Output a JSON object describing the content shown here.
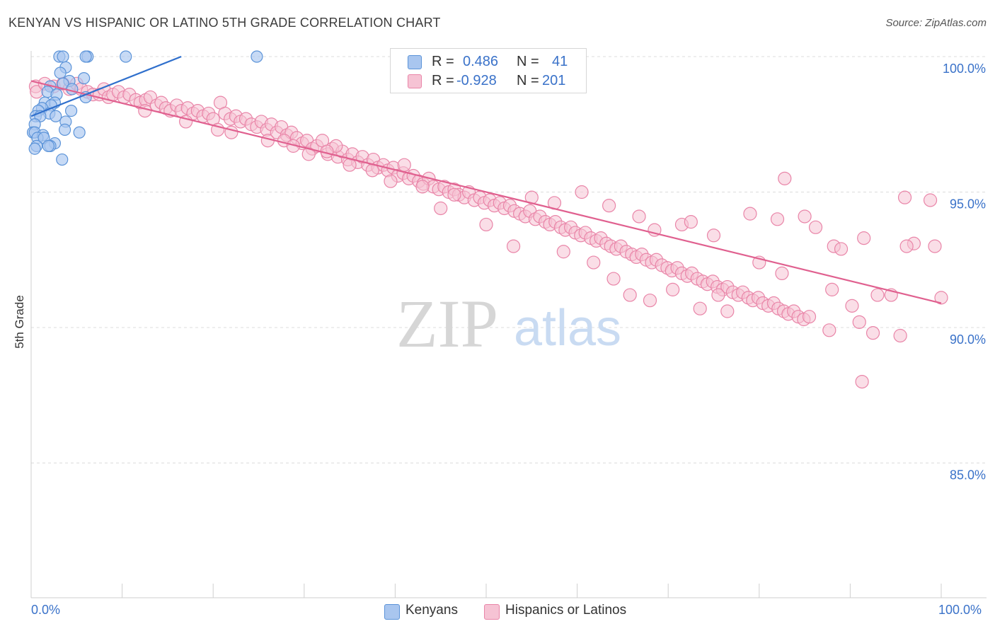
{
  "title": "KENYAN VS HISPANIC OR LATINO 5TH GRADE CORRELATION CHART",
  "source": "Source: ZipAtlas.com",
  "watermark": {
    "zip": "ZIP",
    "atlas": "atlas"
  },
  "colors": {
    "blue": "#5b93d8",
    "blue_fill": "#a9c6ef",
    "blue_line": "#2f6fcc",
    "pink": "#e985a8",
    "pink_fill": "#f6c3d4",
    "pink_line": "#e0608f",
    "axis_text": "#3a72c9",
    "grid": "#dcdcdc"
  },
  "legend_top": {
    "rows": [
      {
        "r_label": "R =",
        "r_value": "0.486",
        "n_label": "N =",
        "n_value": "41"
      },
      {
        "r_label": "R =",
        "r_value": "-0.928",
        "n_label": "N =",
        "n_value": "201"
      }
    ]
  },
  "legend_bottom": {
    "items": [
      "Kenyans",
      "Hispanics or Latinos"
    ]
  },
  "chart_data": {
    "type": "scatter",
    "title": "KENYAN VS HISPANIC OR LATINO 5TH GRADE CORRELATION CHART",
    "xlabel": "",
    "ylabel": "5th Grade",
    "xlim": [
      0,
      100
    ],
    "ylim": [
      80.4,
      100.5
    ],
    "x_tick_labels": [
      "0.0%",
      "100.0%"
    ],
    "y_ticks": [
      100,
      95,
      90,
      85
    ],
    "y_tick_labels": [
      "100.0%",
      "95.0%",
      "90.0%",
      "85.0%"
    ],
    "grid": true,
    "legend_position": "top-center",
    "series": [
      {
        "name": "Kenyans",
        "R": 0.486,
        "N": 41,
        "trend": {
          "x": [
            0,
            16.5
          ],
          "y": [
            97.8,
            100.0
          ]
        },
        "points": [
          [
            3.1,
            100
          ],
          [
            3.5,
            100
          ],
          [
            6.2,
            100
          ],
          [
            10.4,
            100
          ],
          [
            24.8,
            100
          ],
          [
            6.0,
            100
          ],
          [
            3.8,
            99.6
          ],
          [
            3.2,
            99.4
          ],
          [
            5.8,
            99.2
          ],
          [
            4.2,
            99.1
          ],
          [
            3.5,
            99.0
          ],
          [
            2.1,
            98.9
          ],
          [
            4.5,
            98.8
          ],
          [
            1.8,
            98.7
          ],
          [
            2.8,
            98.6
          ],
          [
            6.0,
            98.5
          ],
          [
            1.5,
            98.3
          ],
          [
            2.6,
            98.3
          ],
          [
            2.2,
            98.2
          ],
          [
            1.2,
            98.1
          ],
          [
            0.8,
            98.0
          ],
          [
            4.4,
            98.0
          ],
          [
            2.0,
            97.9
          ],
          [
            0.5,
            97.8
          ],
          [
            1.0,
            97.8
          ],
          [
            2.7,
            97.8
          ],
          [
            3.8,
            97.6
          ],
          [
            0.4,
            97.5
          ],
          [
            3.7,
            97.3
          ],
          [
            0.2,
            97.2
          ],
          [
            0.4,
            97.2
          ],
          [
            5.3,
            97.2
          ],
          [
            1.3,
            97.1
          ],
          [
            0.7,
            97.0
          ],
          [
            1.4,
            97.0
          ],
          [
            2.6,
            96.8
          ],
          [
            2.1,
            96.7
          ],
          [
            0.6,
            96.7
          ],
          [
            1.9,
            96.7
          ],
          [
            0.4,
            96.6
          ],
          [
            3.4,
            96.2
          ]
        ]
      },
      {
        "name": "Hispanics or Latinos",
        "R": -0.928,
        "N": 201,
        "trend": {
          "x": [
            0,
            100
          ],
          "y": [
            99.1,
            90.9
          ]
        },
        "points": [
          [
            0.5,
            98.9
          ],
          [
            0.6,
            98.7
          ],
          [
            1.5,
            99.0
          ],
          [
            2.5,
            98.9
          ],
          [
            3.5,
            99.0
          ],
          [
            4.2,
            98.8
          ],
          [
            5.0,
            99.0
          ],
          [
            5.5,
            98.8
          ],
          [
            6.2,
            98.7
          ],
          [
            6.8,
            98.6
          ],
          [
            7.5,
            98.6
          ],
          [
            8.0,
            98.8
          ],
          [
            8.5,
            98.5
          ],
          [
            9.0,
            98.6
          ],
          [
            9.6,
            98.7
          ],
          [
            10.2,
            98.5
          ],
          [
            10.8,
            98.6
          ],
          [
            11.5,
            98.4
          ],
          [
            12.0,
            98.3
          ],
          [
            12.6,
            98.4
          ],
          [
            13.1,
            98.5
          ],
          [
            13.8,
            98.2
          ],
          [
            14.3,
            98.3
          ],
          [
            14.8,
            98.1
          ],
          [
            15.3,
            98.0
          ],
          [
            16.0,
            98.2
          ],
          [
            16.5,
            98.0
          ],
          [
            17.2,
            98.1
          ],
          [
            17.8,
            97.9
          ],
          [
            18.3,
            98.0
          ],
          [
            18.9,
            97.8
          ],
          [
            19.5,
            97.9
          ],
          [
            20.0,
            97.7
          ],
          [
            20.8,
            98.3
          ],
          [
            21.3,
            97.9
          ],
          [
            21.9,
            97.7
          ],
          [
            22.5,
            97.8
          ],
          [
            23.0,
            97.6
          ],
          [
            23.6,
            97.7
          ],
          [
            24.2,
            97.5
          ],
          [
            24.8,
            97.4
          ],
          [
            25.3,
            97.6
          ],
          [
            25.9,
            97.3
          ],
          [
            26.4,
            97.5
          ],
          [
            27.0,
            97.2
          ],
          [
            27.5,
            97.4
          ],
          [
            28.1,
            97.1
          ],
          [
            28.6,
            97.2
          ],
          [
            29.2,
            97.0
          ],
          [
            29.8,
            96.8
          ],
          [
            30.3,
            96.9
          ],
          [
            30.9,
            96.6
          ],
          [
            31.4,
            96.7
          ],
          [
            32.0,
            96.9
          ],
          [
            32.6,
            96.4
          ],
          [
            33.1,
            96.6
          ],
          [
            33.7,
            96.3
          ],
          [
            34.2,
            96.5
          ],
          [
            34.8,
            96.2
          ],
          [
            35.3,
            96.4
          ],
          [
            35.9,
            96.1
          ],
          [
            36.4,
            96.3
          ],
          [
            37.0,
            96.0
          ],
          [
            37.6,
            96.2
          ],
          [
            38.1,
            95.9
          ],
          [
            38.7,
            96.0
          ],
          [
            39.2,
            95.8
          ],
          [
            39.8,
            95.9
          ],
          [
            40.3,
            95.6
          ],
          [
            40.9,
            95.7
          ],
          [
            41.5,
            95.5
          ],
          [
            42.0,
            95.6
          ],
          [
            42.6,
            95.4
          ],
          [
            43.1,
            95.3
          ],
          [
            43.7,
            95.5
          ],
          [
            44.2,
            95.2
          ],
          [
            44.8,
            95.1
          ],
          [
            45.4,
            95.2
          ],
          [
            45.9,
            95.0
          ],
          [
            46.5,
            95.1
          ],
          [
            47.0,
            94.9
          ],
          [
            47.6,
            94.8
          ],
          [
            48.1,
            95.0
          ],
          [
            48.7,
            94.7
          ],
          [
            49.3,
            94.8
          ],
          [
            49.8,
            94.6
          ],
          [
            50.4,
            94.7
          ],
          [
            50.9,
            94.5
          ],
          [
            51.5,
            94.6
          ],
          [
            52.0,
            94.4
          ],
          [
            52.6,
            94.5
          ],
          [
            53.1,
            94.3
          ],
          [
            53.7,
            94.2
          ],
          [
            54.3,
            94.1
          ],
          [
            54.8,
            94.3
          ],
          [
            55.4,
            94.0
          ],
          [
            55.9,
            94.1
          ],
          [
            56.5,
            93.9
          ],
          [
            57.0,
            93.8
          ],
          [
            57.6,
            93.9
          ],
          [
            58.2,
            93.7
          ],
          [
            58.7,
            93.6
          ],
          [
            59.3,
            93.7
          ],
          [
            59.8,
            93.5
          ],
          [
            60.4,
            93.4
          ],
          [
            60.9,
            93.5
          ],
          [
            61.5,
            93.3
          ],
          [
            62.1,
            93.2
          ],
          [
            62.6,
            93.3
          ],
          [
            63.2,
            93.1
          ],
          [
            63.7,
            93.0
          ],
          [
            64.3,
            92.9
          ],
          [
            64.8,
            93.0
          ],
          [
            65.4,
            92.8
          ],
          [
            66.0,
            92.7
          ],
          [
            66.5,
            92.6
          ],
          [
            67.1,
            92.7
          ],
          [
            67.6,
            92.5
          ],
          [
            68.2,
            92.4
          ],
          [
            68.7,
            92.5
          ],
          [
            69.3,
            92.3
          ],
          [
            69.9,
            92.2
          ],
          [
            70.4,
            92.1
          ],
          [
            71.0,
            92.2
          ],
          [
            71.5,
            92.0
          ],
          [
            72.1,
            91.9
          ],
          [
            72.6,
            92.0
          ],
          [
            73.2,
            91.8
          ],
          [
            73.8,
            91.7
          ],
          [
            74.3,
            91.6
          ],
          [
            74.9,
            91.7
          ],
          [
            75.4,
            91.5
          ],
          [
            76.0,
            91.4
          ],
          [
            76.5,
            91.5
          ],
          [
            77.1,
            91.3
          ],
          [
            77.7,
            91.2
          ],
          [
            78.2,
            91.3
          ],
          [
            78.8,
            91.1
          ],
          [
            79.3,
            91.0
          ],
          [
            79.9,
            91.1
          ],
          [
            80.4,
            90.9
          ],
          [
            81.0,
            90.8
          ],
          [
            81.6,
            90.9
          ],
          [
            82.1,
            90.7
          ],
          [
            82.7,
            90.6
          ],
          [
            83.2,
            90.5
          ],
          [
            83.8,
            90.6
          ],
          [
            84.3,
            90.4
          ],
          [
            84.9,
            90.3
          ],
          [
            85.5,
            90.4
          ],
          [
            12.5,
            98.0
          ],
          [
            17.0,
            97.6
          ],
          [
            22.0,
            97.2
          ],
          [
            27.8,
            96.9
          ],
          [
            30.5,
            96.4
          ],
          [
            35.0,
            96.0
          ],
          [
            28.8,
            96.7
          ],
          [
            33.5,
            96.7
          ],
          [
            39.5,
            95.4
          ],
          [
            43.0,
            95.2
          ],
          [
            46.5,
            94.9
          ],
          [
            55.0,
            94.8
          ],
          [
            57.5,
            94.6
          ],
          [
            60.5,
            95.0
          ],
          [
            63.5,
            94.5
          ],
          [
            66.8,
            94.1
          ],
          [
            68.5,
            93.6
          ],
          [
            71.5,
            93.8
          ],
          [
            75.0,
            93.4
          ],
          [
            79.0,
            94.2
          ],
          [
            82.0,
            94.0
          ],
          [
            85.0,
            94.1
          ],
          [
            88.2,
            93.0
          ],
          [
            91.5,
            93.3
          ],
          [
            20.5,
            97.3
          ],
          [
            26.0,
            96.9
          ],
          [
            32.5,
            96.5
          ],
          [
            37.5,
            95.8
          ],
          [
            41.0,
            96.0
          ],
          [
            45.0,
            94.4
          ],
          [
            50.0,
            93.8
          ],
          [
            53.0,
            93.0
          ],
          [
            58.5,
            92.8
          ],
          [
            61.8,
            92.4
          ],
          [
            64.0,
            91.8
          ],
          [
            65.8,
            91.2
          ],
          [
            68.0,
            91.0
          ],
          [
            70.5,
            91.4
          ],
          [
            73.5,
            90.7
          ],
          [
            76.5,
            90.6
          ],
          [
            80.0,
            92.4
          ],
          [
            82.5,
            92.0
          ],
          [
            88.0,
            91.4
          ],
          [
            90.2,
            90.8
          ],
          [
            93.0,
            91.2
          ],
          [
            94.5,
            91.2
          ],
          [
            97.0,
            93.1
          ],
          [
            100.0,
            91.1
          ],
          [
            72.5,
            93.9
          ],
          [
            75.5,
            91.2
          ],
          [
            82.8,
            95.5
          ],
          [
            86.2,
            93.7
          ],
          [
            89.0,
            92.9
          ],
          [
            91.0,
            90.2
          ],
          [
            95.5,
            89.7
          ],
          [
            96.2,
            93.0
          ],
          [
            98.8,
            94.7
          ],
          [
            99.3,
            93.0
          ],
          [
            87.7,
            89.9
          ],
          [
            92.5,
            89.8
          ],
          [
            91.3,
            88.0
          ],
          [
            96.0,
            94.8
          ]
        ]
      }
    ]
  }
}
